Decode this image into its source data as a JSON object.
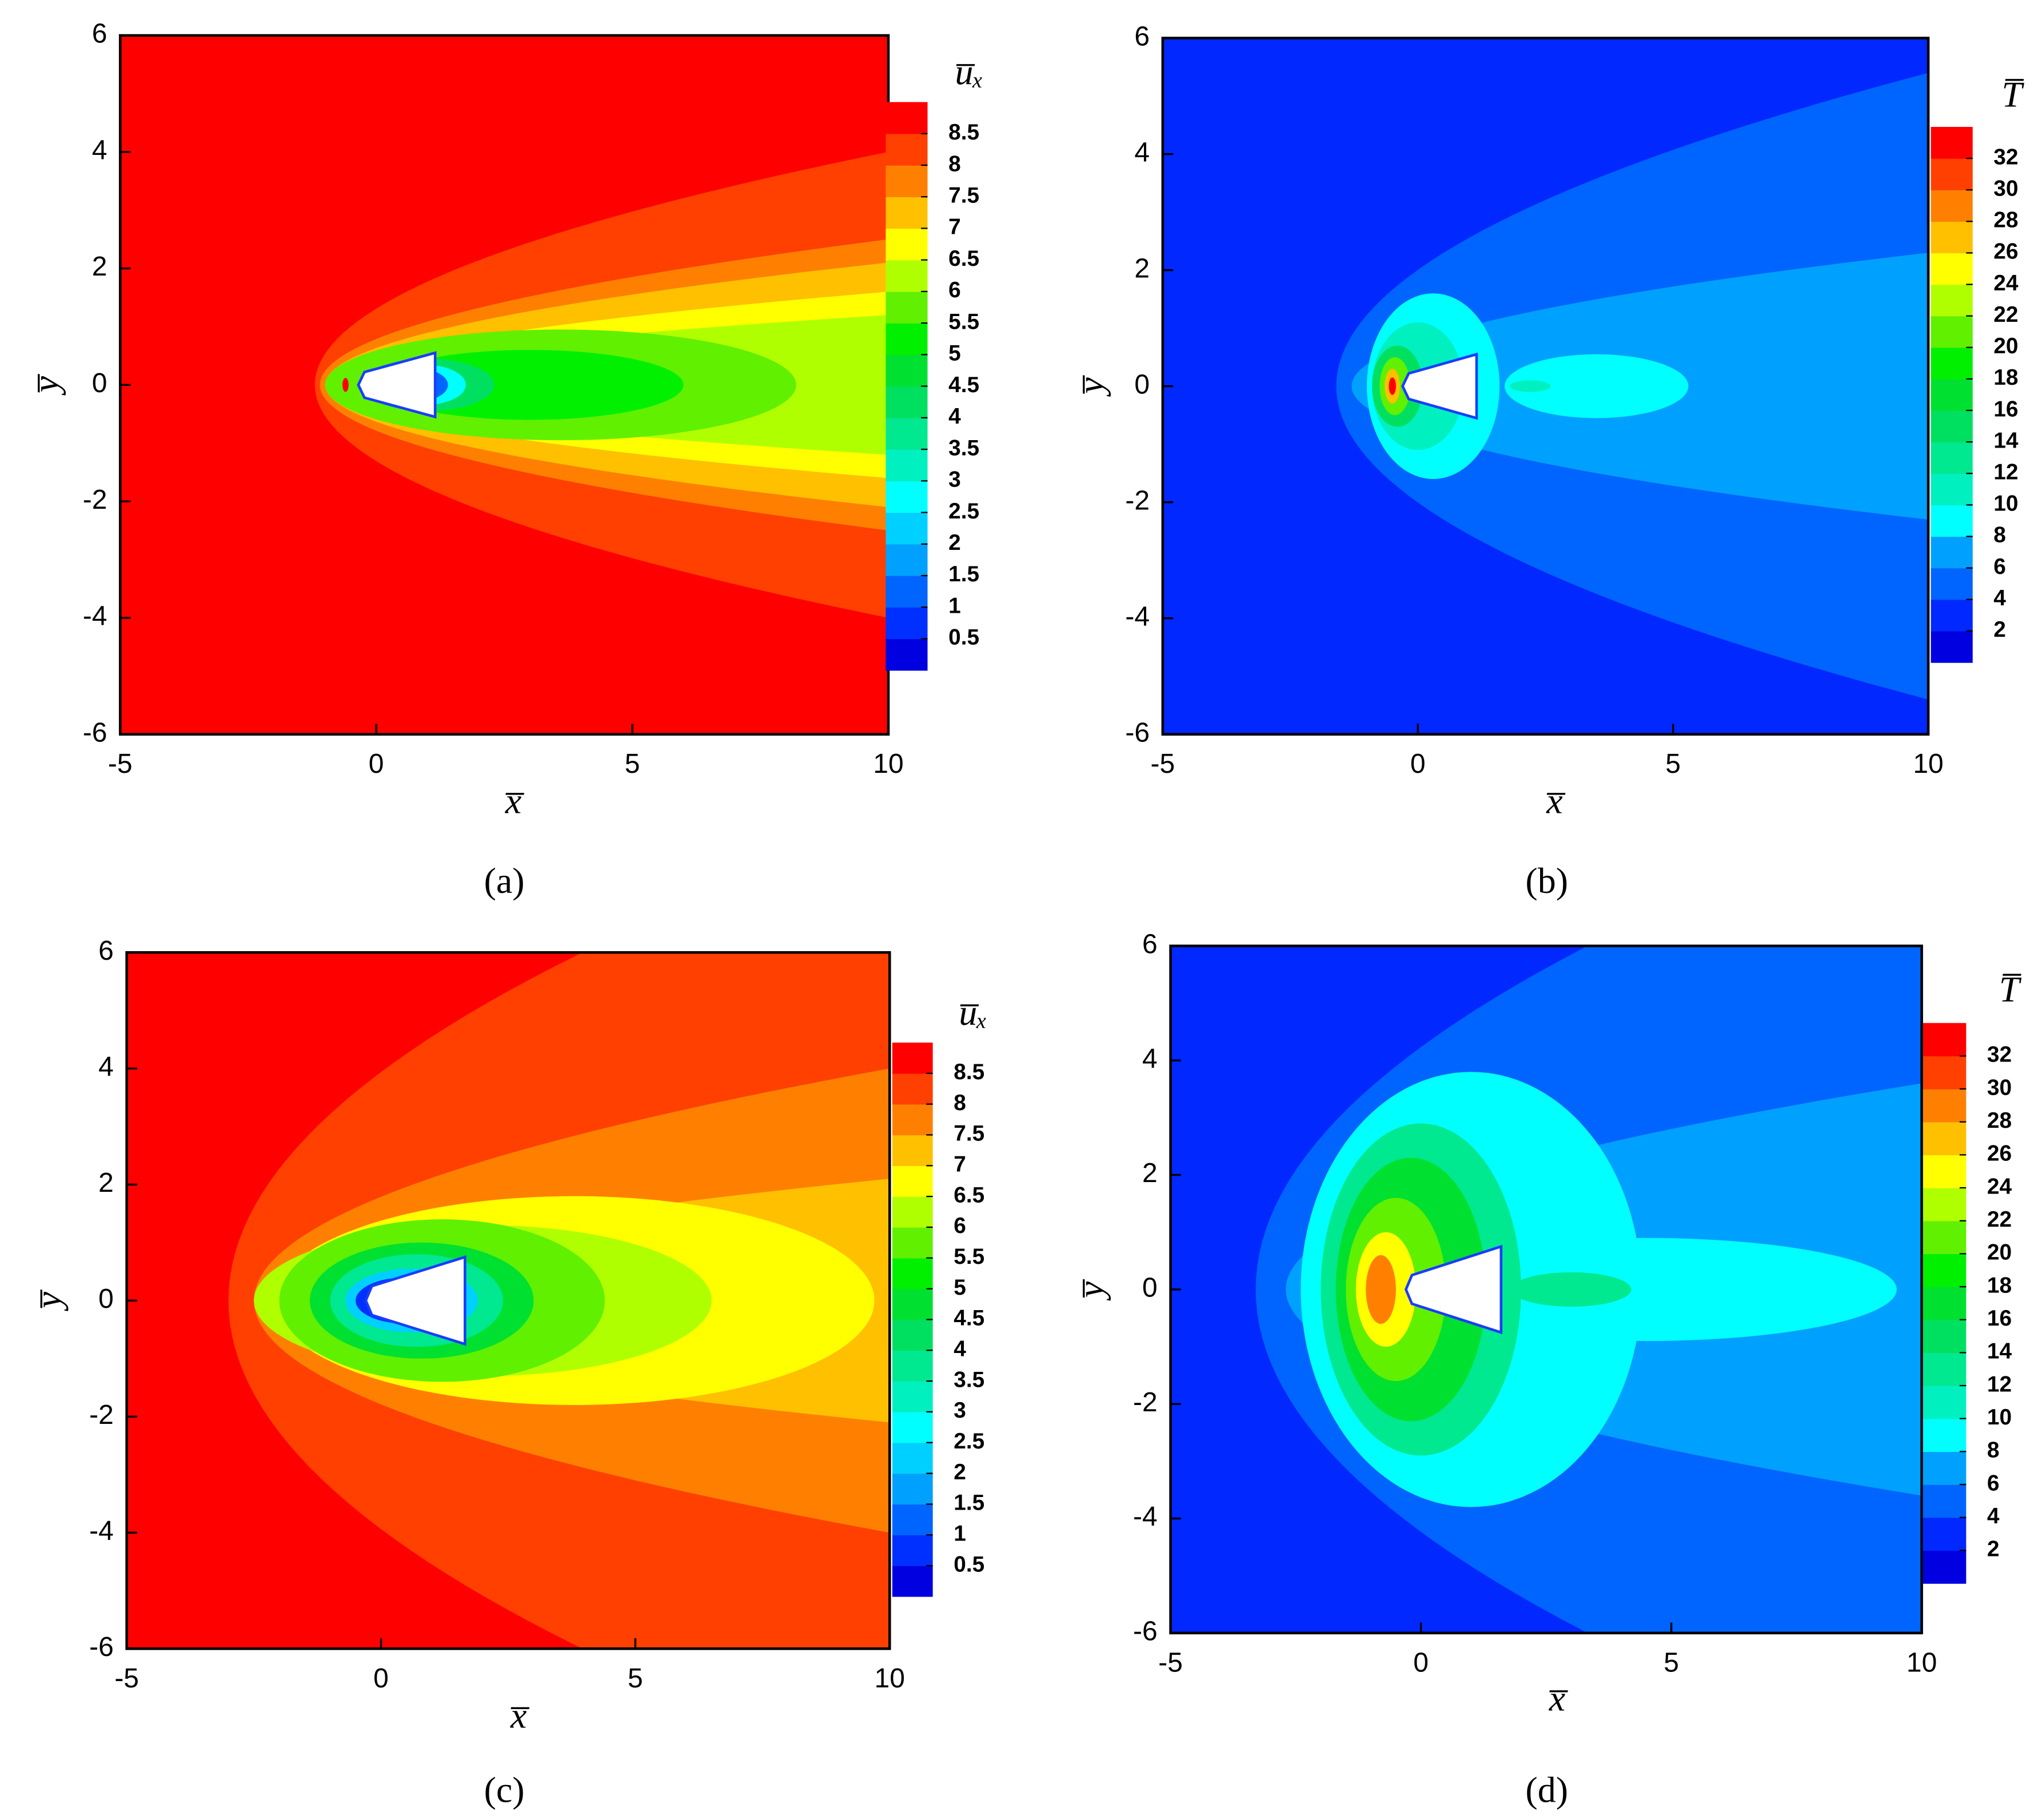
{
  "chart_data": [
    {
      "type": "contour",
      "panel_label": "(a)",
      "colorbar_title": "u̅ₓ",
      "xlabel": "x̅",
      "ylabel": "y̅",
      "xlim": [
        -5,
        10
      ],
      "ylim": [
        -6,
        6
      ],
      "xticks": [
        -5,
        0,
        5,
        10
      ],
      "yticks": [
        -6,
        -4,
        -2,
        0,
        2,
        4,
        6
      ],
      "levels": [
        0.5,
        1,
        1.5,
        2,
        2.5,
        3,
        3.5,
        4,
        4.5,
        5,
        5.5,
        6,
        6.5,
        7,
        7.5,
        8,
        8.5
      ],
      "colors": [
        "#0000e0",
        "#0030ff",
        "#0064ff",
        "#00a0ff",
        "#00d0ff",
        "#00ffff",
        "#00f0c0",
        "#00e890",
        "#00e060",
        "#00e030",
        "#00f000",
        "#60f000",
        "#b0ff00",
        "#ffff00",
        "#ffc000",
        "#ff8000",
        "#ff4000",
        "#ff0000"
      ]
    },
    {
      "type": "contour",
      "panel_label": "(b)",
      "colorbar_title": "T̅",
      "xlabel": "x̅",
      "ylabel": "y̅",
      "xlim": [
        -5,
        10
      ],
      "ylim": [
        -6,
        6
      ],
      "xticks": [
        -5,
        0,
        5,
        10
      ],
      "yticks": [
        -6,
        -4,
        -2,
        0,
        2,
        4,
        6
      ],
      "levels": [
        2,
        4,
        6,
        8,
        10,
        12,
        14,
        16,
        18,
        20,
        22,
        24,
        26,
        28,
        30,
        32
      ],
      "colors": [
        "#0000e0",
        "#0028ff",
        "#0064ff",
        "#00a0ff",
        "#00ffff",
        "#00f0c0",
        "#00e890",
        "#00e060",
        "#00e030",
        "#00f000",
        "#60f000",
        "#b0ff00",
        "#ffff00",
        "#ffc000",
        "#ff8000",
        "#ff4000",
        "#ff0000"
      ]
    },
    {
      "type": "contour",
      "panel_label": "(c)",
      "colorbar_title": "u̅ₓ",
      "xlabel": "x̅",
      "ylabel": "y̅",
      "xlim": [
        -5,
        10
      ],
      "ylim": [
        -6,
        6
      ],
      "xticks": [
        -5,
        0,
        5,
        10
      ],
      "yticks": [
        -6,
        -4,
        -2,
        0,
        2,
        4,
        6
      ],
      "levels": [
        0.5,
        1,
        1.5,
        2,
        2.5,
        3,
        3.5,
        4,
        4.5,
        5,
        5.5,
        6,
        6.5,
        7,
        7.5,
        8,
        8.5
      ],
      "colors": [
        "#0000e0",
        "#0030ff",
        "#0064ff",
        "#00a0ff",
        "#00d0ff",
        "#00ffff",
        "#00f0c0",
        "#00e890",
        "#00e060",
        "#00e030",
        "#00f000",
        "#60f000",
        "#b0ff00",
        "#ffff00",
        "#ffc000",
        "#ff8000",
        "#ff4000",
        "#ff0000"
      ]
    },
    {
      "type": "contour",
      "panel_label": "(d)",
      "colorbar_title": "T̅",
      "xlabel": "x̅",
      "ylabel": "y̅",
      "xlim": [
        -5,
        10
      ],
      "ylim": [
        -6,
        6
      ],
      "xticks": [
        -5,
        0,
        5,
        10
      ],
      "yticks": [
        -6,
        -4,
        -2,
        0,
        2,
        4,
        6
      ],
      "levels": [
        2,
        4,
        6,
        8,
        10,
        12,
        14,
        16,
        18,
        20,
        22,
        24,
        26,
        28,
        30,
        32
      ],
      "colors": [
        "#0000e0",
        "#0028ff",
        "#0064ff",
        "#00a0ff",
        "#00ffff",
        "#00f0c0",
        "#00e890",
        "#00e060",
        "#00e030",
        "#00f000",
        "#60f000",
        "#b0ff00",
        "#ffff00",
        "#ffc000",
        "#ff8000",
        "#ff4000",
        "#ff0000"
      ]
    }
  ]
}
